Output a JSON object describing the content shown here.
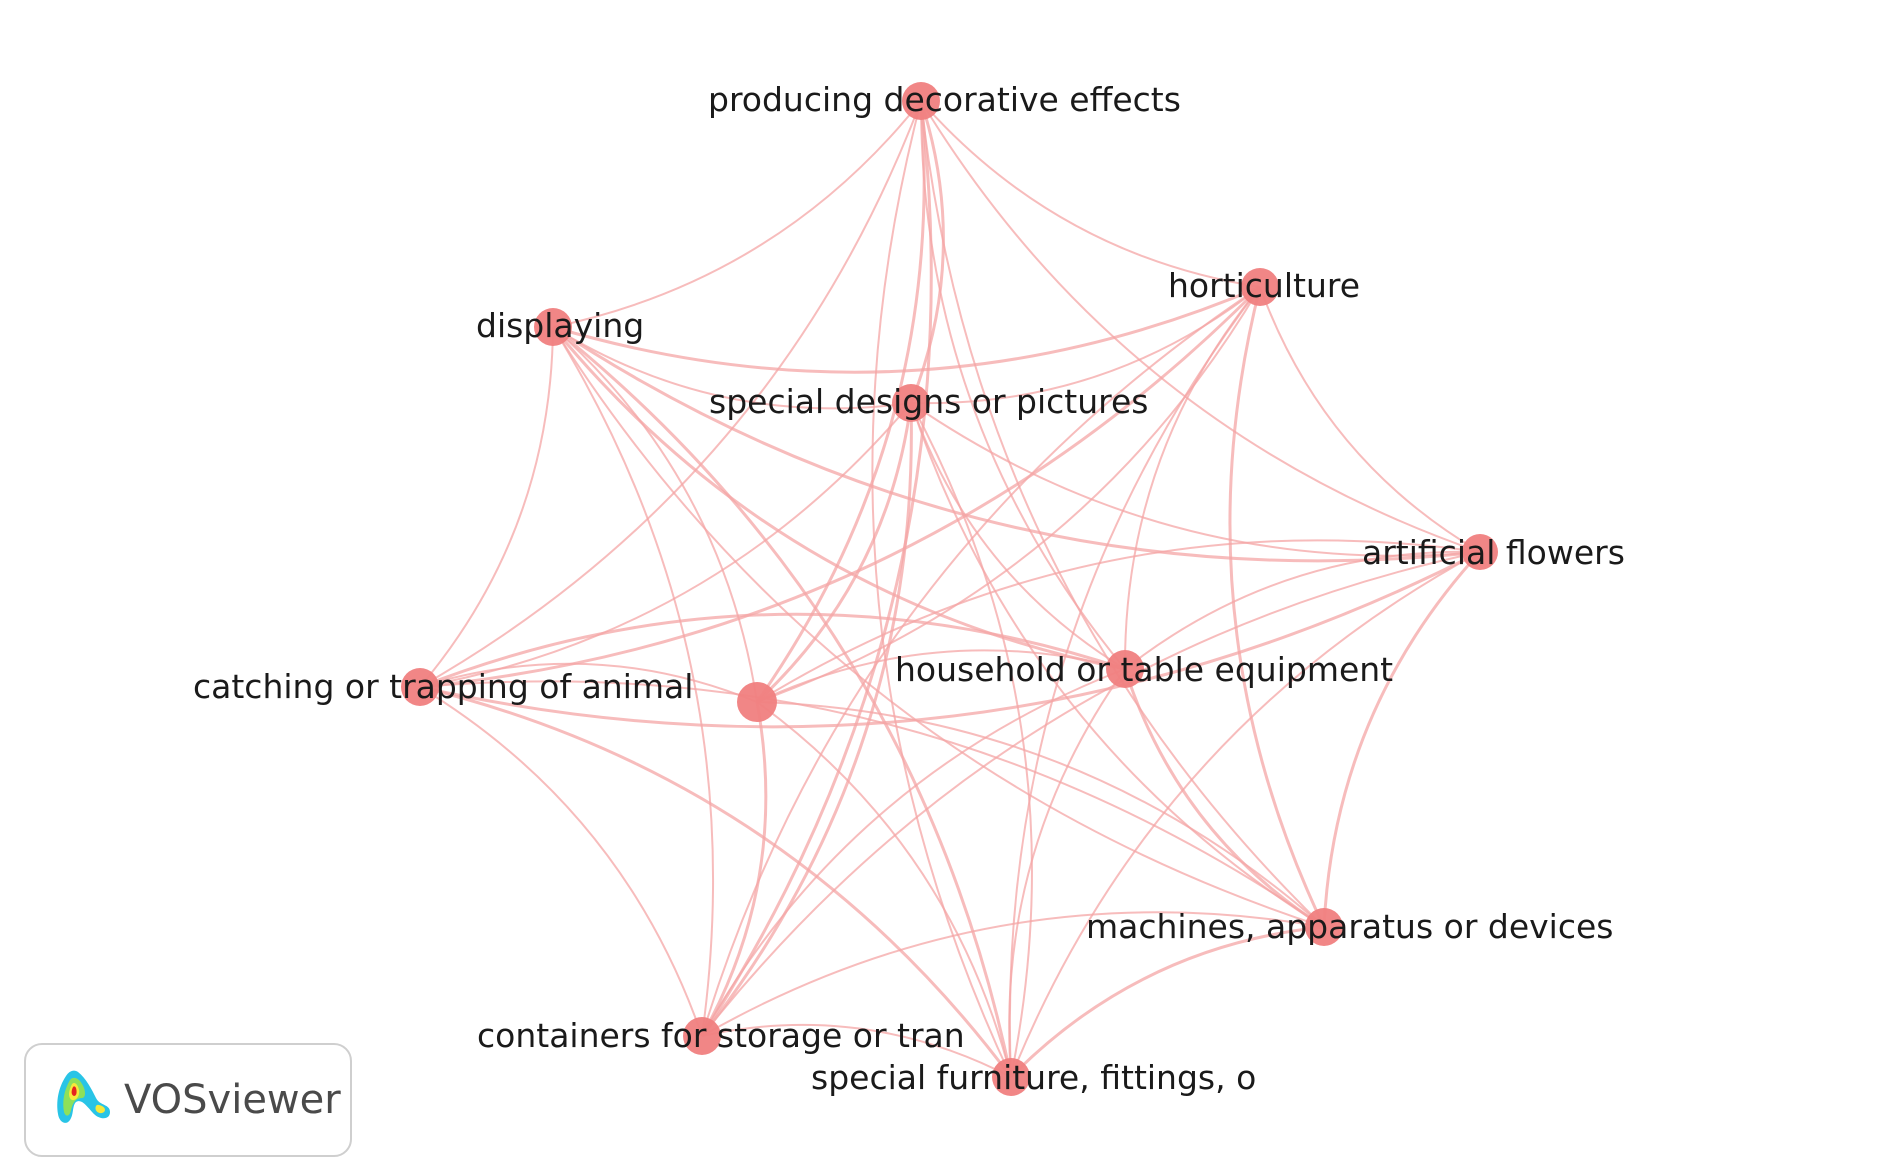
{
  "network": {
    "nodes": [
      {
        "id": "producing",
        "label": "producing decorative effects"
      },
      {
        "id": "horticulture",
        "label": "horticulture"
      },
      {
        "id": "displaying",
        "label": "displaying"
      },
      {
        "id": "special_designs",
        "label": "special designs or pictures"
      },
      {
        "id": "artificial_flowers",
        "label": "artificial flowers"
      },
      {
        "id": "catching",
        "label": "catching or trapping of animal"
      },
      {
        "id": "unlabeled",
        "label": ""
      },
      {
        "id": "household",
        "label": "household or table equipment"
      },
      {
        "id": "machines",
        "label": "machines, apparatus or devices"
      },
      {
        "id": "containers",
        "label": "containers for storage or tran"
      },
      {
        "id": "special_furniture",
        "label": "special furniture, fittings, o"
      }
    ],
    "node_color": "#f08080",
    "link_color": "#f4a6a6"
  },
  "logo": {
    "name": "VOSviewer"
  }
}
